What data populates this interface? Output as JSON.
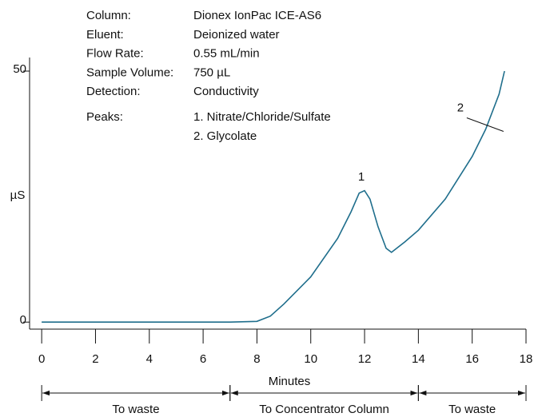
{
  "chart_data": {
    "type": "line",
    "info": [
      {
        "label": "Column:",
        "value": "Dionex IonPac ICE-AS6"
      },
      {
        "label": "Eluent:",
        "value": "Deionized water"
      },
      {
        "label": "Flow Rate:",
        "value": "0.55 mL/min"
      },
      {
        "label": "Sample Volume:",
        "value": "750 µL"
      },
      {
        "label": "Detection:",
        "value": "Conductivity"
      }
    ],
    "peaks": {
      "label": "Peaks:",
      "items": [
        "1. Nitrate/Chloride/Sulfate",
        "2. Glycolate"
      ]
    },
    "x_label": "Minutes",
    "y_label": "µS",
    "x": [
      0,
      7,
      8,
      8.5,
      9,
      10,
      11,
      11.5,
      11.8,
      12,
      12.2,
      12.5,
      12.8,
      13,
      13.5,
      14,
      15,
      16,
      16.5,
      17,
      17.2
    ],
    "values": [
      0,
      0,
      0.15,
      1.2,
      3.6,
      9,
      16.7,
      22,
      25.7,
      26.2,
      24.5,
      19,
      14.7,
      13.9,
      16,
      18.3,
      24.5,
      33,
      38.4,
      45.4,
      50
    ],
    "color": "#1f6e8c",
    "xlim": [
      -0.45,
      18
    ],
    "ylim": [
      -1.4,
      50
    ],
    "xticks": [
      0,
      2,
      4,
      6,
      8,
      10,
      12,
      14,
      16,
      18
    ],
    "yticks": [
      0,
      50
    ],
    "annotations": [
      {
        "text": "1",
        "x": 11.88,
        "y": 28.8
      },
      {
        "text": "2",
        "x": 15.56,
        "y": 42.6
      }
    ],
    "segments": [
      {
        "label": "To waste",
        "start": 0,
        "end": 7
      },
      {
        "label": "To Concentrator Column",
        "start": 7,
        "end": 14
      },
      {
        "label": "To waste",
        "start": 14,
        "end": 18
      }
    ]
  }
}
